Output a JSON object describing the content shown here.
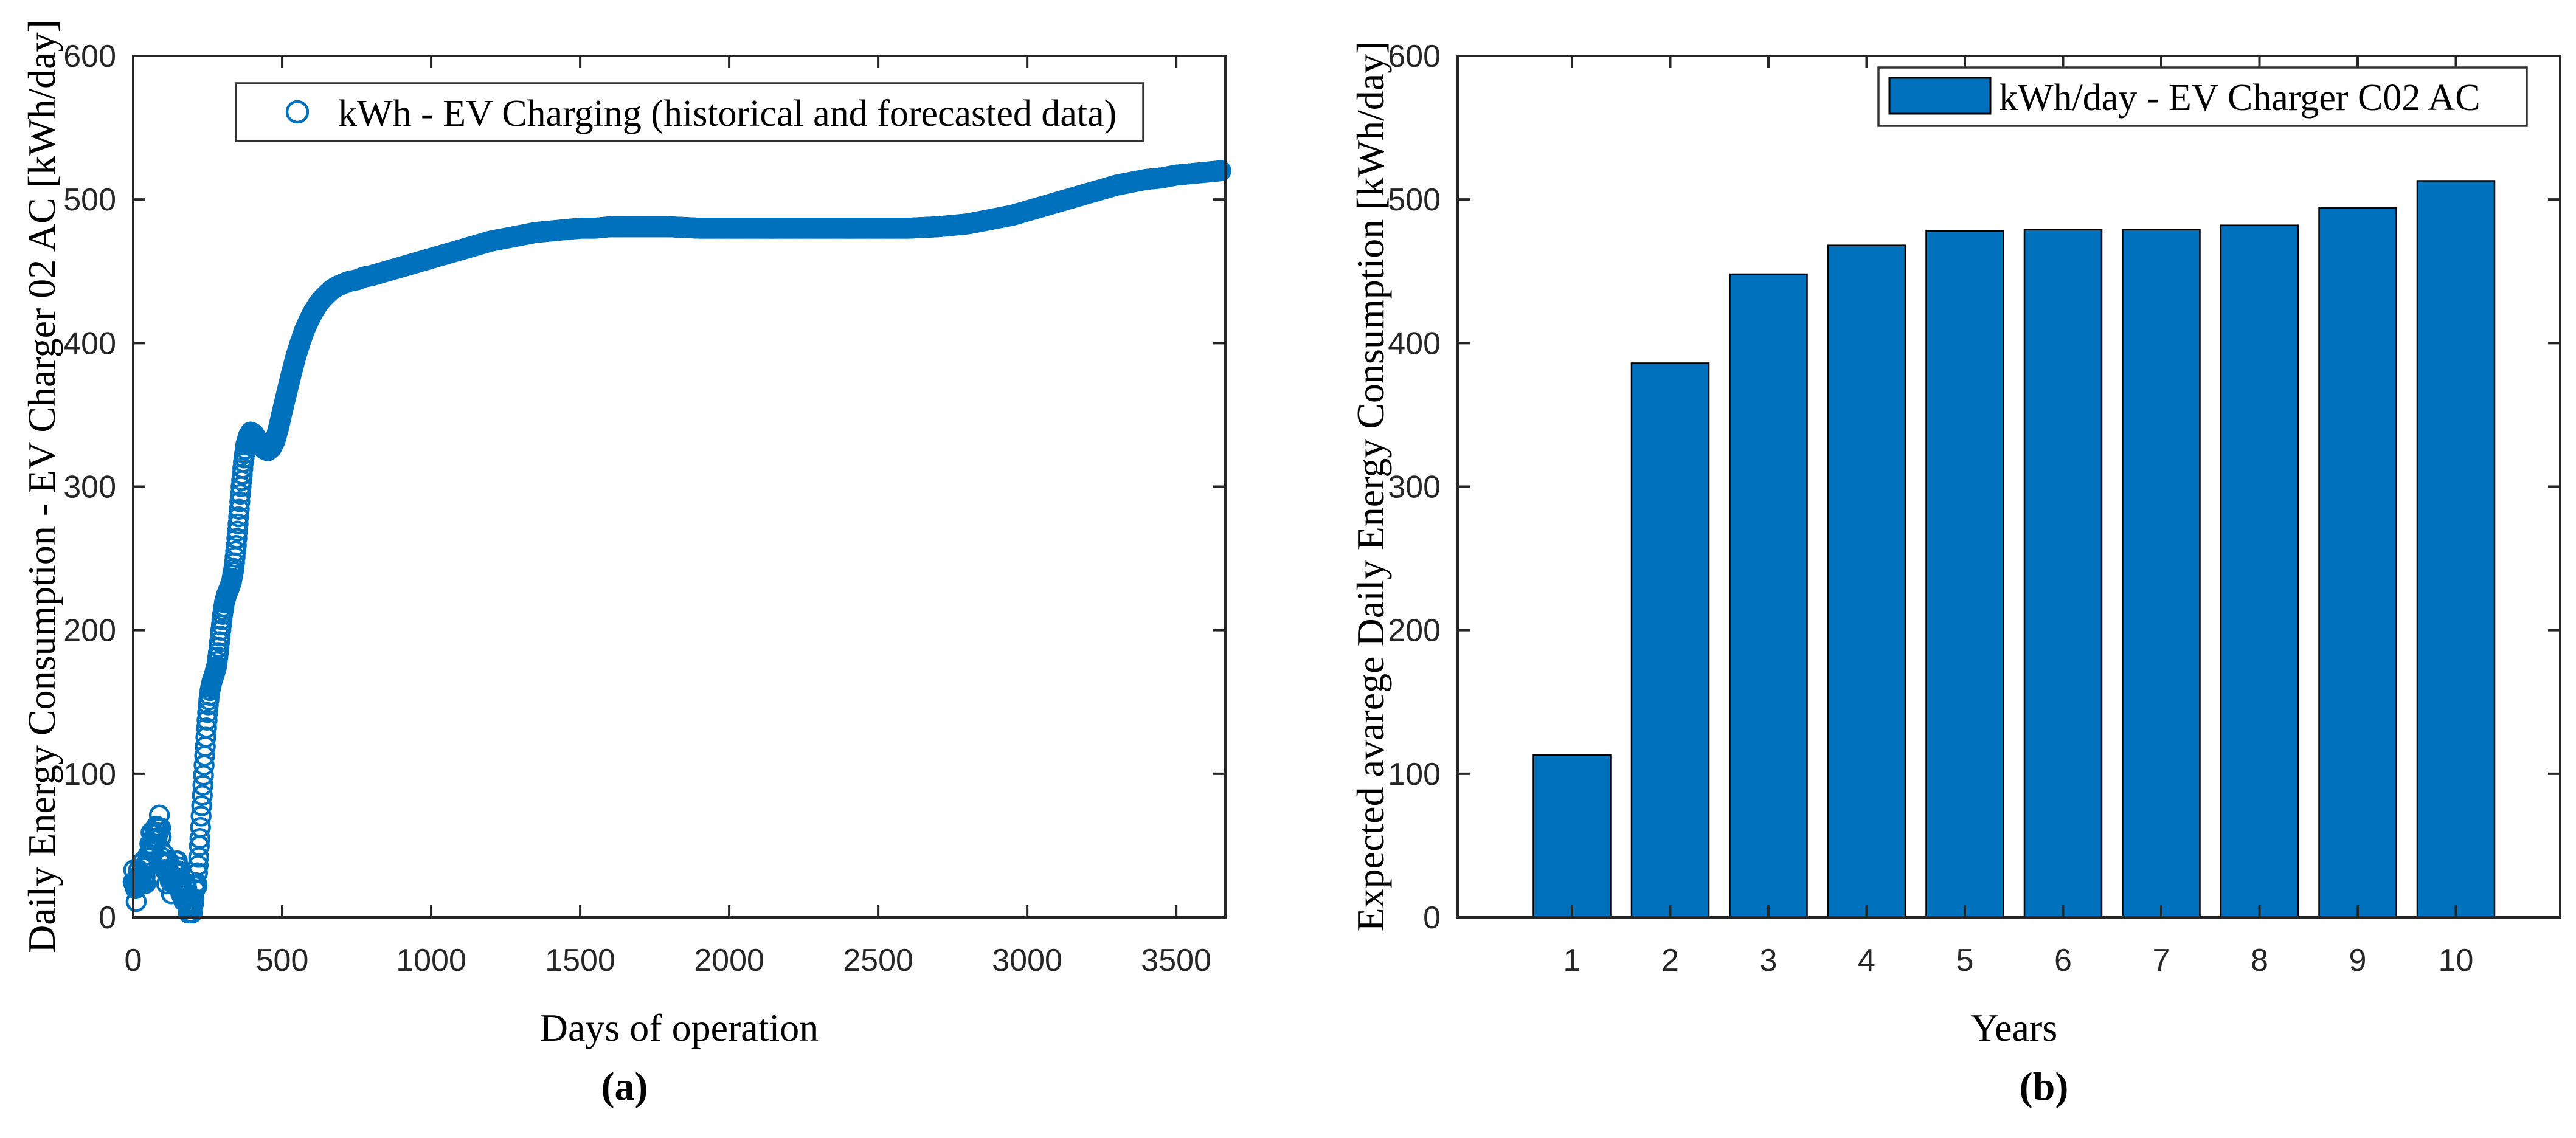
{
  "captions": {
    "a": "(a)",
    "b": "(b)"
  },
  "colors": {
    "series_blue": "#0072BD",
    "axis": "#262626",
    "bar_edge": "#000000",
    "label_text": "#000000"
  },
  "chart_data": [
    {
      "type": "scatter",
      "panel": "a",
      "title": "",
      "xlabel": "Days of operation",
      "ylabel": "Daily Energy Consumption - EV Charger 02 AC [kWh/day]",
      "legend": [
        "kWh - EV Charging (historical and forecasted data)"
      ],
      "legend_position": "north",
      "marker": "open-circle",
      "grid": false,
      "xlim": [
        0,
        3665
      ],
      "ylim": [
        0,
        600
      ],
      "xticks": [
        0,
        500,
        1000,
        1500,
        2000,
        2500,
        3000,
        3500
      ],
      "yticks": [
        0,
        100,
        200,
        300,
        400,
        500,
        600
      ],
      "x_step_days": 2,
      "noisy_until_day": 232,
      "anchors": [
        [
          0,
          20
        ],
        [
          12,
          22
        ],
        [
          25,
          26
        ],
        [
          40,
          34
        ],
        [
          55,
          47
        ],
        [
          68,
          56
        ],
        [
          78,
          60
        ],
        [
          88,
          56
        ],
        [
          98,
          47
        ],
        [
          108,
          35
        ],
        [
          118,
          28
        ],
        [
          128,
          30
        ],
        [
          138,
          31
        ],
        [
          148,
          27
        ],
        [
          158,
          22
        ],
        [
          168,
          17
        ],
        [
          178,
          13
        ],
        [
          188,
          11
        ],
        [
          198,
          10
        ],
        [
          206,
          13
        ],
        [
          214,
          25
        ],
        [
          222,
          48
        ],
        [
          230,
          78
        ],
        [
          238,
          106
        ],
        [
          246,
          132
        ],
        [
          252,
          148
        ],
        [
          258,
          158
        ],
        [
          264,
          164
        ],
        [
          272,
          169
        ],
        [
          280,
          175
        ],
        [
          287,
          186
        ],
        [
          294,
          200
        ],
        [
          300,
          211
        ],
        [
          306,
          219
        ],
        [
          314,
          225
        ],
        [
          322,
          229
        ],
        [
          330,
          234
        ],
        [
          338,
          243
        ],
        [
          346,
          259
        ],
        [
          354,
          279
        ],
        [
          362,
          300
        ],
        [
          370,
          317
        ],
        [
          378,
          329
        ],
        [
          386,
          335
        ],
        [
          394,
          338
        ],
        [
          404,
          337
        ],
        [
          416,
          333
        ],
        [
          428,
          329
        ],
        [
          440,
          326
        ],
        [
          452,
          325
        ],
        [
          464,
          327
        ],
        [
          476,
          332
        ],
        [
          488,
          341
        ],
        [
          500,
          352
        ],
        [
          515,
          365
        ],
        [
          530,
          378
        ],
        [
          545,
          390
        ],
        [
          560,
          400
        ],
        [
          575,
          409
        ],
        [
          590,
          416
        ],
        [
          605,
          422
        ],
        [
          620,
          427
        ],
        [
          635,
          431
        ],
        [
          650,
          434
        ],
        [
          665,
          437
        ],
        [
          680,
          439
        ],
        [
          700,
          441
        ],
        [
          725,
          443
        ],
        [
          750,
          444
        ],
        [
          775,
          446
        ],
        [
          800,
          447
        ],
        [
          850,
          450
        ],
        [
          900,
          453
        ],
        [
          950,
          456
        ],
        [
          1000,
          459
        ],
        [
          1050,
          462
        ],
        [
          1100,
          465
        ],
        [
          1150,
          468
        ],
        [
          1200,
          471
        ],
        [
          1250,
          473
        ],
        [
          1300,
          475
        ],
        [
          1350,
          477
        ],
        [
          1400,
          478
        ],
        [
          1450,
          479
        ],
        [
          1500,
          480
        ],
        [
          1550,
          480
        ],
        [
          1600,
          481
        ],
        [
          1700,
          481
        ],
        [
          1800,
          481
        ],
        [
          1900,
          480
        ],
        [
          2000,
          480
        ],
        [
          2100,
          480
        ],
        [
          2200,
          480
        ],
        [
          2300,
          480
        ],
        [
          2400,
          480
        ],
        [
          2500,
          480
        ],
        [
          2600,
          480
        ],
        [
          2700,
          481
        ],
        [
          2750,
          482
        ],
        [
          2800,
          483
        ],
        [
          2850,
          485
        ],
        [
          2900,
          487
        ],
        [
          2950,
          489
        ],
        [
          3000,
          492
        ],
        [
          3050,
          495
        ],
        [
          3100,
          498
        ],
        [
          3150,
          501
        ],
        [
          3200,
          504
        ],
        [
          3250,
          507
        ],
        [
          3300,
          510
        ],
        [
          3350,
          512
        ],
        [
          3400,
          514
        ],
        [
          3450,
          515
        ],
        [
          3500,
          517
        ],
        [
          3550,
          518
        ],
        [
          3600,
          519
        ],
        [
          3650,
          520
        ]
      ]
    },
    {
      "type": "bar",
      "panel": "b",
      "title": "",
      "xlabel": "Years",
      "ylabel": "Expected avarege Daily Energy Consumption [kWh/day]",
      "legend": [
        "kWh/day - EV Charger C02 AC"
      ],
      "legend_position": "northeast",
      "grid": false,
      "categories": [
        "1",
        "2",
        "3",
        "4",
        "5",
        "6",
        "7",
        "8",
        "9",
        "10"
      ],
      "values": [
        113,
        386,
        448,
        468,
        478,
        479,
        479,
        482,
        494,
        513
      ],
      "ylim": [
        0,
        600
      ],
      "yticks": [
        0,
        100,
        200,
        300,
        400,
        500,
        600
      ]
    }
  ]
}
